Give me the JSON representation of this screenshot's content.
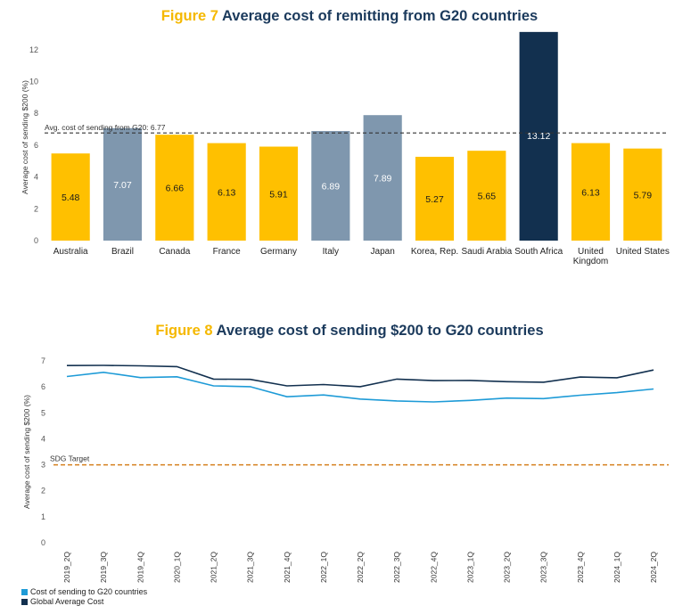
{
  "figure7": {
    "title_num": "Figure 7",
    "title_text": "Average cost of remitting from G20 countries"
  },
  "figure8": {
    "title_num": "Figure 8",
    "title_text": "Average cost of sending $200 to G20 countries"
  },
  "colors": {
    "gold": "#FFC000",
    "grey": "#7F97AE",
    "navy": "#12304F",
    "lightblue": "#1E9BD7",
    "dashblack": "#333333",
    "dashorange": "#D5801E"
  },
  "chart_data": [
    {
      "type": "bar",
      "ylabel": "Average cost of sending $200 (%)",
      "ylim": [
        0,
        13
      ],
      "yticks": [
        0,
        2,
        4,
        6,
        8,
        10,
        12
      ],
      "categories": [
        "Australia",
        "Brazil",
        "Canada",
        "France",
        "Germany",
        "Italy",
        "Japan",
        "Korea, Rep.",
        "Saudi Arabia",
        "South Africa",
        "United Kingdom",
        "United States"
      ],
      "category_lines": [
        [
          "Australia"
        ],
        [
          "Brazil"
        ],
        [
          "Canada"
        ],
        [
          "France"
        ],
        [
          "Germany"
        ],
        [
          "Italy"
        ],
        [
          "Japan"
        ],
        [
          "Korea, Rep."
        ],
        [
          "Saudi Arabia"
        ],
        [
          "South Africa"
        ],
        [
          "United",
          "Kingdom"
        ],
        [
          "United States"
        ]
      ],
      "values": [
        5.48,
        7.07,
        6.66,
        6.13,
        5.91,
        6.89,
        7.89,
        5.27,
        5.65,
        13.12,
        6.13,
        5.79
      ],
      "value_labels": [
        "5.48",
        "7.07",
        "6.66",
        "6.13",
        "5.91",
        "6.89",
        "7.89",
        "5.27",
        "5.65",
        "13.12",
        "6.13",
        "5.79"
      ],
      "bar_colors": [
        "gold",
        "grey",
        "gold",
        "gold",
        "gold",
        "grey",
        "grey",
        "gold",
        "gold",
        "navy",
        "gold",
        "gold"
      ],
      "reference_line": {
        "value": 6.77,
        "label": "Avg. cost of sending from G20: 6.77"
      }
    },
    {
      "type": "line",
      "ylabel": "Average cost of sending $200 (%)",
      "ylim": [
        0,
        7
      ],
      "yticks": [
        0,
        1,
        2,
        3,
        4,
        5,
        6,
        7
      ],
      "x": [
        "2019_2Q",
        "2019_3Q",
        "2019_4Q",
        "2020_1Q",
        "2021_2Q",
        "2021_3Q",
        "2021_4Q",
        "2022_1Q",
        "2022_2Q",
        "2022_3Q",
        "2022_4Q",
        "2023_1Q",
        "2023_2Q",
        "2023_3Q",
        "2023_4Q",
        "2024_1Q",
        "2024_2Q"
      ],
      "series": [
        {
          "name": "Cost of sending to G20 countries",
          "color": "lightblue",
          "values": [
            6.4,
            6.56,
            6.36,
            6.39,
            6.04,
            6.01,
            5.62,
            5.69,
            5.53,
            5.46,
            5.42,
            5.48,
            5.57,
            5.55,
            5.68,
            5.78,
            5.92
          ]
        },
        {
          "name": "Global Average Cost",
          "color": "navy",
          "values": [
            6.82,
            6.83,
            6.81,
            6.78,
            6.3,
            6.29,
            6.04,
            6.09,
            6.01,
            6.3,
            6.24,
            6.25,
            6.2,
            6.18,
            6.38,
            6.35,
            6.65
          ]
        }
      ],
      "reference_line": {
        "value": 3,
        "label": "SDG Target"
      }
    }
  ]
}
